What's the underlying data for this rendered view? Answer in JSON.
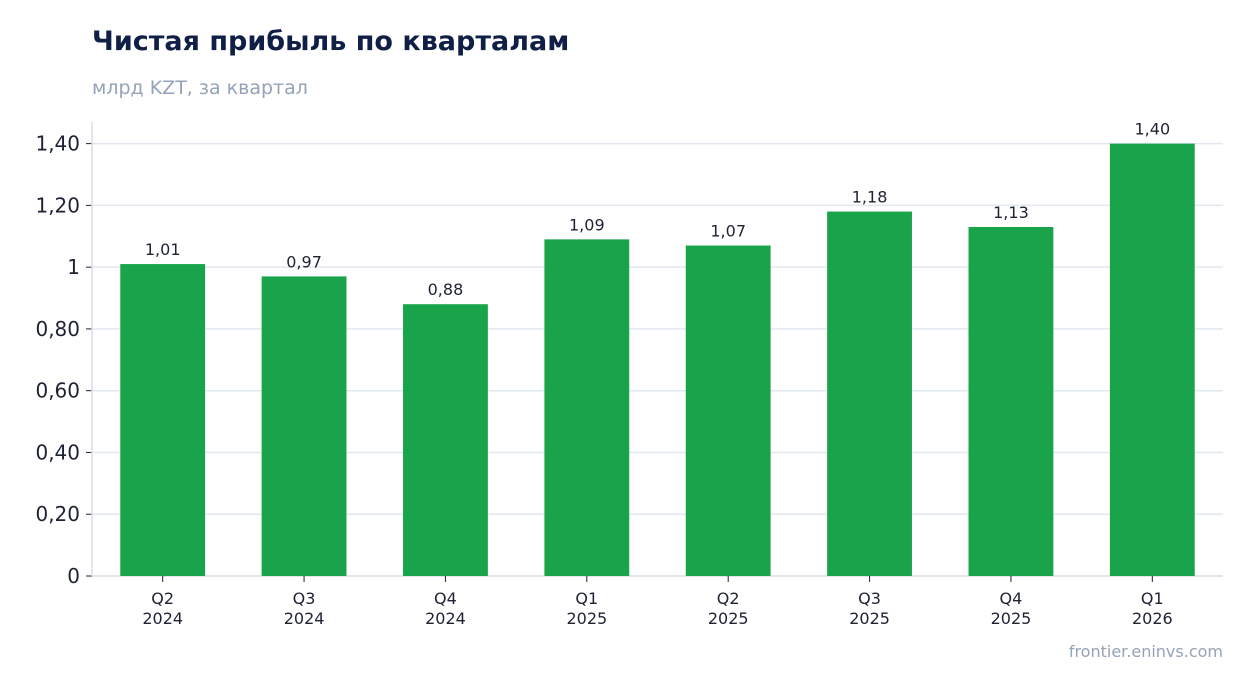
{
  "chart_data": {
    "type": "bar",
    "title": "Чистая прибыль по кварталам",
    "subtitle": "млрд KZT, за квартал",
    "xlabel": "",
    "ylabel": "",
    "categories": [
      [
        "Q2",
        "2024"
      ],
      [
        "Q3",
        "2024"
      ],
      [
        "Q4",
        "2024"
      ],
      [
        "Q1",
        "2025"
      ],
      [
        "Q2",
        "2025"
      ],
      [
        "Q3",
        "2025"
      ],
      [
        "Q4",
        "2025"
      ],
      [
        "Q1",
        "2026"
      ]
    ],
    "values": [
      1.01,
      0.97,
      0.88,
      1.09,
      1.07,
      1.18,
      1.13,
      1.4
    ],
    "value_labels": [
      "1,01",
      "0,97",
      "0,88",
      "1,09",
      "1,07",
      "1,18",
      "1,13",
      "1,40"
    ],
    "ylim": [
      0,
      1.47
    ],
    "yticks": [
      0,
      0.2,
      0.4,
      0.6,
      0.8,
      1,
      1.2,
      1.4
    ],
    "ytick_labels": [
      "0",
      "0,20",
      "0,40",
      "0,60",
      "0,80",
      "1",
      "1,20",
      "1,40"
    ],
    "grid": true,
    "bar_color": "#19a34a",
    "grid_color": "#e2e8f0",
    "source": "frontier.eninvs.com"
  }
}
